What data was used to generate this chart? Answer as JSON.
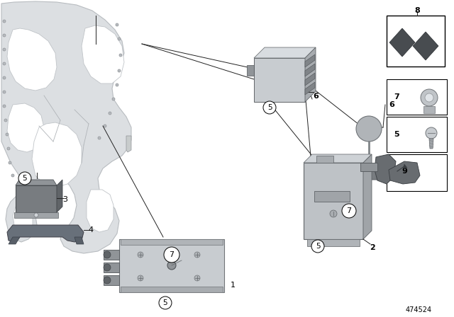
{
  "background_color": "#ffffff",
  "part_number": "474524",
  "figure_width": 6.4,
  "figure_height": 4.48,
  "dpi": 100,
  "car_body_color": "#d8dadc",
  "car_body_edge": "#b0b4b8",
  "component_gray_light": "#c0c4c8",
  "component_gray_mid": "#a0a4a8",
  "component_gray_dark": "#707478",
  "label_fontsize": 7,
  "bold_label_fontsize": 8,
  "line_color": "#222222",
  "line_width": 0.7
}
